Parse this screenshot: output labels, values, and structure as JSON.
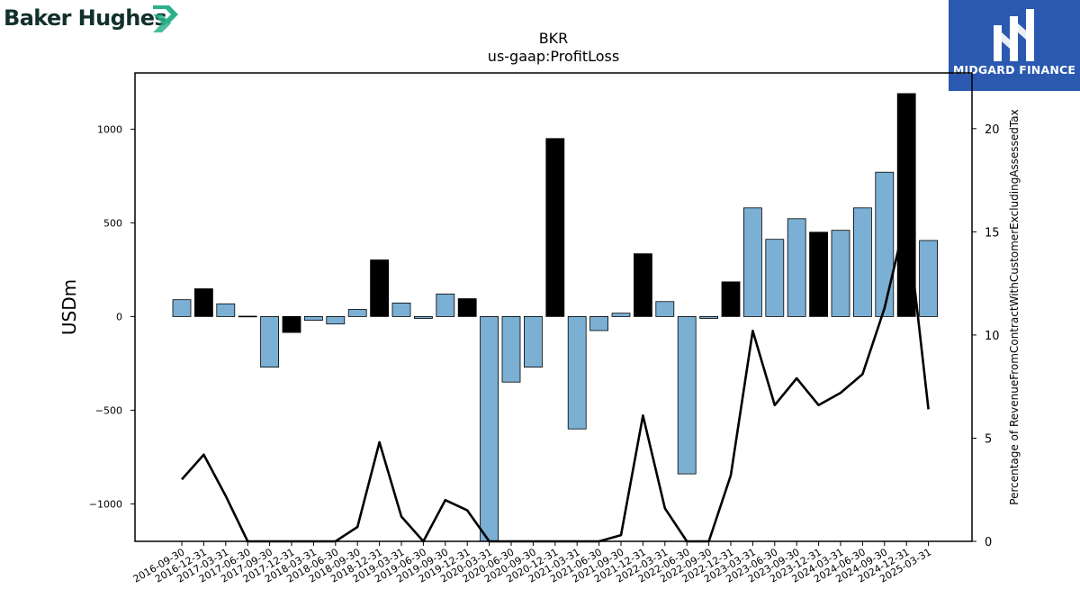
{
  "logos": {
    "left_text": "Baker Hughes",
    "right_text": "MIDGARD FINANCE",
    "brand_green": "#2bb08b",
    "brand_blue": "#2b59b0"
  },
  "chart_data": {
    "type": "bar",
    "title": "BKR",
    "subtitle": "us-gaap:ProfitLoss",
    "ylabel": "USDm",
    "y2label": "Percentage of RevenueFromContractWithCustomerExcludingAssessedTax",
    "ylim": [
      -1200,
      1300
    ],
    "y2lim": [
      0,
      22.7
    ],
    "yticks": [
      -1000,
      -500,
      0,
      500,
      1000
    ],
    "y2ticks": [
      0,
      5,
      10,
      15,
      20
    ],
    "categories": [
      "2016-09-30",
      "2016-12-31",
      "2017-03-31",
      "2017-06-30",
      "2017-09-30",
      "2017-12-31",
      "2018-03-31",
      "2018-06-30",
      "2018-09-30",
      "2018-12-31",
      "2019-03-31",
      "2019-06-30",
      "2019-09-30",
      "2019-12-31",
      "2020-03-31",
      "2020-06-30",
      "2020-09-30",
      "2020-12-31",
      "2021-03-31",
      "2021-06-30",
      "2021-09-30",
      "2021-12-31",
      "2022-03-31",
      "2022-06-30",
      "2022-09-30",
      "2022-12-31",
      "2023-03-31",
      "2023-06-30",
      "2023-09-30",
      "2023-12-31",
      "2024-03-31",
      "2024-06-30",
      "2024-09-30",
      "2024-12-31",
      "2025-03-31"
    ],
    "series": [
      {
        "type": "bar",
        "axis": "left",
        "values": [
          90,
          148,
          68,
          2,
          -270,
          -85,
          -20,
          -40,
          38,
          302,
          72,
          -10,
          120,
          95,
          -1200,
          -350,
          -270,
          950,
          -600,
          -75,
          18,
          335,
          80,
          -840,
          -10,
          185,
          580,
          412,
          522,
          450,
          460,
          580,
          770,
          1190,
          406
        ],
        "quarter_end_q4": [
          false,
          true,
          false,
          false,
          false,
          true,
          false,
          false,
          false,
          true,
          false,
          false,
          false,
          true,
          false,
          false,
          false,
          true,
          false,
          false,
          false,
          true,
          false,
          false,
          false,
          true,
          false,
          false,
          false,
          true,
          false,
          false,
          false,
          true,
          false
        ]
      },
      {
        "type": "line",
        "axis": "right",
        "values": [
          3.0,
          4.2,
          2.2,
          0,
          0,
          0,
          0,
          0,
          0.7,
          4.8,
          1.2,
          0,
          2.0,
          1.5,
          0,
          0,
          0,
          0,
          0,
          0,
          0.3,
          6.1,
          1.6,
          0,
          0,
          3.2,
          10.2,
          6.6,
          7.9,
          6.6,
          7.2,
          8.1,
          11.3,
          15.8,
          6.4
        ]
      }
    ],
    "colors": {
      "bar": "#7bafd4",
      "bar_q4": "#000000",
      "line": "#000000"
    },
    "grid": false
  }
}
